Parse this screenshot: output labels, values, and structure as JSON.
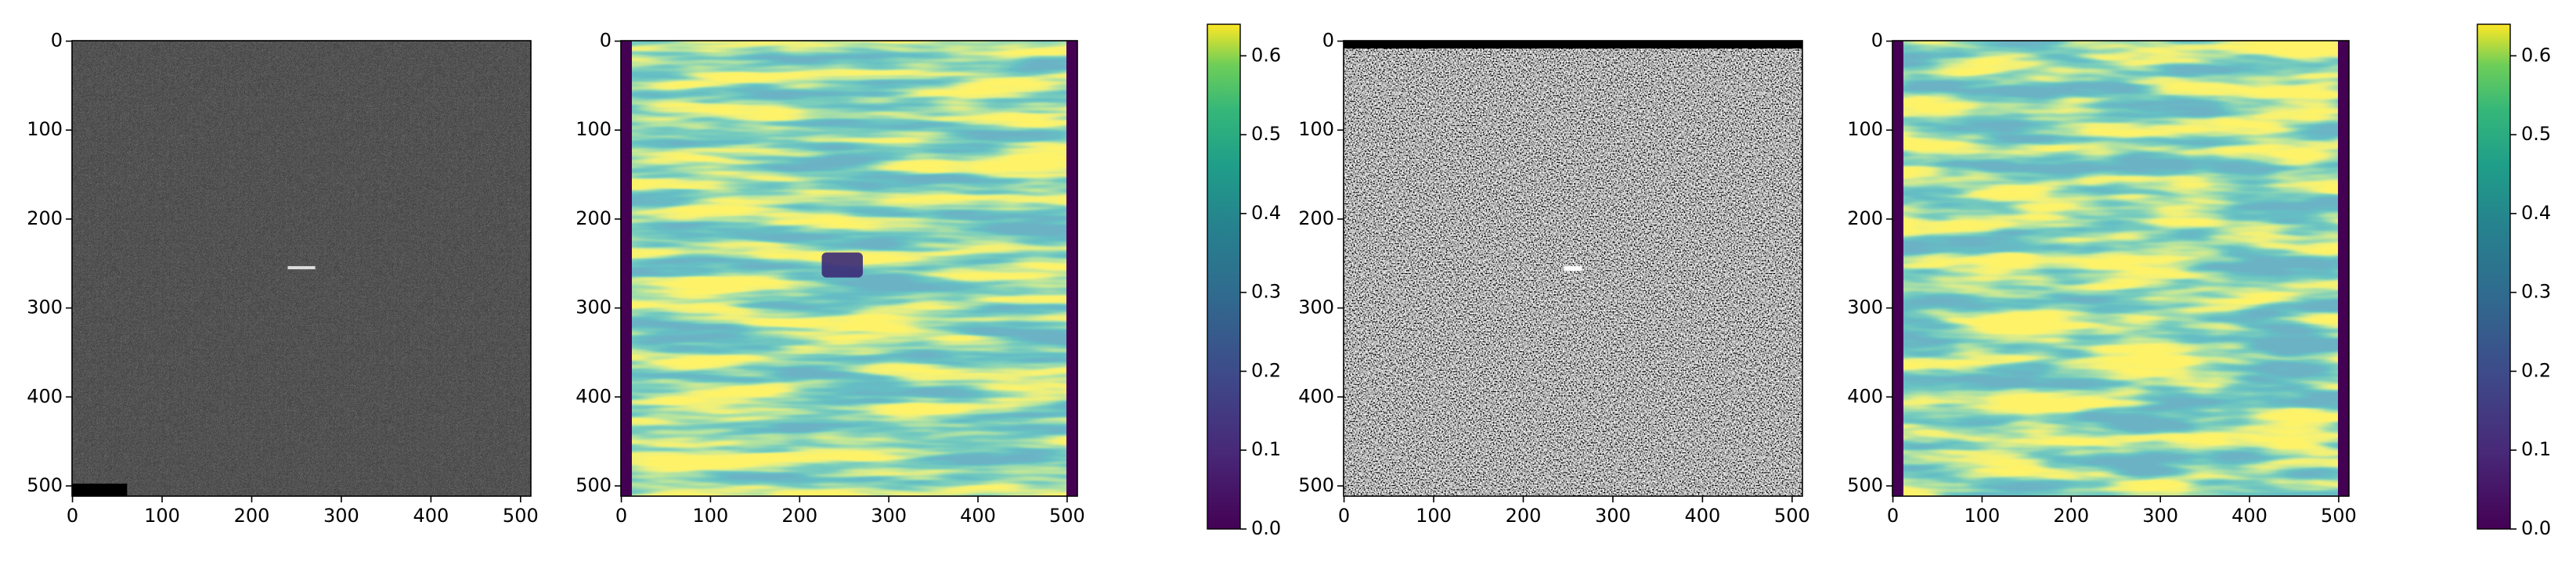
{
  "chart_data": [
    {
      "type": "image",
      "cmap": "gray",
      "xlim": [
        -0.5,
        511.5
      ],
      "ylim": [
        511.5,
        -0.5
      ],
      "xticks": [
        0,
        100,
        200,
        300,
        400,
        500
      ],
      "yticks": [
        0,
        100,
        200,
        300,
        400,
        500
      ]
    },
    {
      "type": "image",
      "cmap": "viridis",
      "xlim": [
        -0.5,
        511.5
      ],
      "ylim": [
        511.5,
        -0.5
      ],
      "xticks": [
        0,
        100,
        200,
        300,
        400,
        500
      ],
      "yticks": [
        0,
        100,
        200,
        300,
        400,
        500
      ]
    },
    {
      "type": "colorbar",
      "cmap": "viridis",
      "ylim": [
        0,
        0.64
      ],
      "yticks": [
        {
          "value": 0,
          "label": "0.0"
        },
        0.1,
        0.2,
        0.3,
        0.4,
        0.5,
        0.6
      ]
    },
    {
      "type": "image",
      "cmap": "gray",
      "xlim": [
        -0.5,
        511.5
      ],
      "ylim": [
        511.5,
        -0.5
      ],
      "xticks": [
        0,
        100,
        200,
        300,
        400,
        500
      ],
      "yticks": [
        0,
        100,
        200,
        300,
        400,
        500
      ]
    },
    {
      "type": "image",
      "cmap": "viridis",
      "xlim": [
        -0.5,
        511.5
      ],
      "ylim": [
        511.5,
        -0.5
      ],
      "xticks": [
        0,
        100,
        200,
        300,
        400,
        500
      ],
      "yticks": [
        0,
        100,
        200,
        300,
        400,
        500
      ]
    },
    {
      "type": "colorbar",
      "cmap": "viridis",
      "ylim": [
        0,
        0.64
      ],
      "yticks": [
        {
          "value": 0,
          "label": "0.0"
        },
        0.1,
        0.2,
        0.3,
        0.4,
        0.5,
        0.6
      ]
    }
  ]
}
